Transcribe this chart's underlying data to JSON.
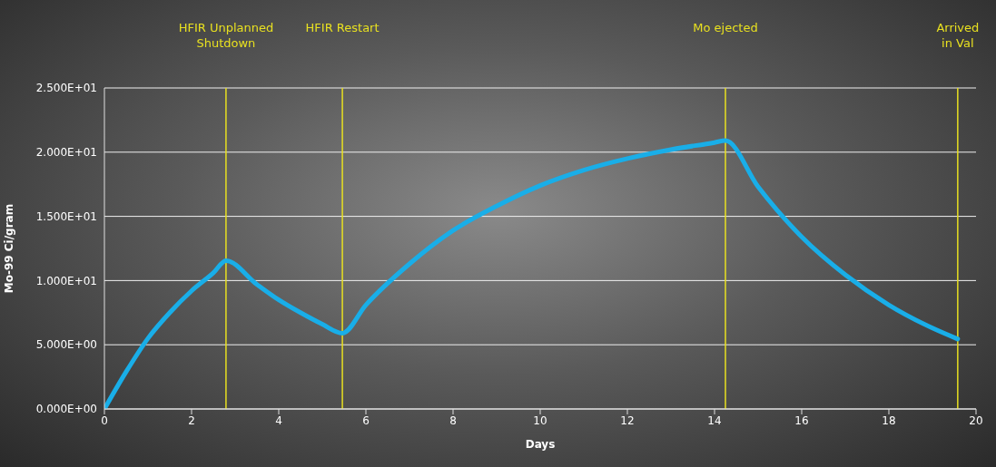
{
  "chart_data": {
    "type": "line",
    "xlabel": "Days",
    "ylabel": "Mo-99 Ci/gram",
    "x": [
      0,
      0.5,
      1,
      1.5,
      2,
      2.5,
      2.79,
      3.5,
      4,
      4.5,
      5,
      5.46,
      6,
      7,
      8,
      9,
      10,
      11,
      12,
      13,
      14,
      14.25,
      15,
      16,
      17,
      18,
      19,
      19.58
    ],
    "series": [
      {
        "color": "#19aee8",
        "values": [
          0,
          2.9,
          5.5,
          7.5,
          9.2,
          10.6,
          11.55,
          9.7,
          8.5,
          7.5,
          6.6,
          5.9,
          8.1,
          11.3,
          13.9,
          15.8,
          17.4,
          18.6,
          19.5,
          20.2,
          20.75,
          20.9,
          17.3,
          13.4,
          10.45,
          8.1,
          6.3,
          5.45
        ]
      }
    ],
    "xlim": [
      0,
      20
    ],
    "xticks": [
      0,
      2,
      4,
      6,
      8,
      10,
      12,
      14,
      16,
      18,
      20
    ],
    "ylim": [
      0,
      25
    ],
    "yticks": [
      {
        "value": 0,
        "label": "0.000E+00"
      },
      {
        "value": 5,
        "label": "5.000E+00"
      },
      {
        "value": 10,
        "label": "1.000E+01"
      },
      {
        "value": 15,
        "label": "1.500E+01"
      },
      {
        "value": 20,
        "label": "2.000E+01"
      },
      {
        "value": 25,
        "label": "2.500E+01"
      }
    ],
    "grid": "y",
    "marker": "none",
    "line_style": "solid",
    "legend": false,
    "ref_lines": [
      {
        "axis": "x",
        "value": 2.79,
        "label": "HFIR Unplanned\nShutdown",
        "color": "#e8e020"
      },
      {
        "axis": "x",
        "value": 5.46,
        "label": "HFIR Restart",
        "color": "#e8e020"
      },
      {
        "axis": "x",
        "value": 14.25,
        "label": "Mo ejected",
        "color": "#e8e020"
      },
      {
        "axis": "x",
        "value": 19.58,
        "label": "Arrived\nin Val",
        "color": "#e8e020"
      }
    ]
  }
}
